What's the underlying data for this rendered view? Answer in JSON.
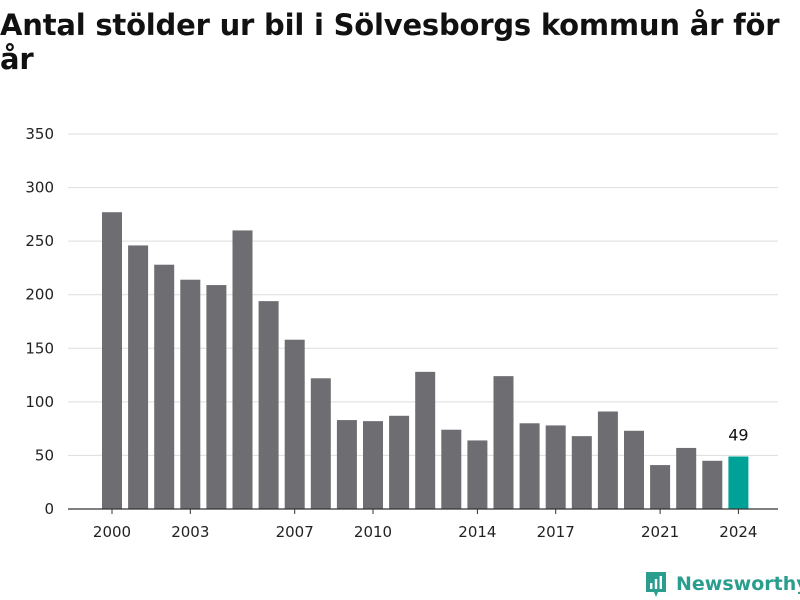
{
  "title": "Antal stölder ur bil i Sölvesborgs kommun år för år",
  "brand": {
    "name": "Newsworthy",
    "logo_icon": "newsworthy-logo-icon"
  },
  "colors": {
    "bar": "#6e6d72",
    "highlight": "#00a196",
    "grid": "#dddddd",
    "axis": "#333333",
    "brand": "#2a9d8f"
  },
  "chart_data": {
    "type": "bar",
    "title": "Antal stölder ur bil i Sölvesborgs kommun år för år",
    "xlabel": "",
    "ylabel": "",
    "categories": [
      "2000",
      "2001",
      "2002",
      "2003",
      "2004",
      "2005",
      "2006",
      "2007",
      "2008",
      "2009",
      "2010",
      "2011",
      "2012",
      "2013",
      "2014",
      "2015",
      "2016",
      "2017",
      "2018",
      "2019",
      "2020",
      "2021",
      "2022",
      "2023",
      "2024"
    ],
    "values": [
      277,
      246,
      228,
      214,
      209,
      260,
      194,
      158,
      122,
      83,
      82,
      87,
      128,
      74,
      64,
      124,
      80,
      78,
      68,
      91,
      73,
      41,
      57,
      45,
      49
    ],
    "x_tick_labels": [
      "2000",
      "2003",
      "2007",
      "2010",
      "2014",
      "2017",
      "2021",
      "2024"
    ],
    "y_ticks": [
      0,
      50,
      100,
      150,
      200,
      250,
      300,
      350
    ],
    "ylim": [
      0,
      350
    ],
    "grid": true,
    "highlight": {
      "category": "2024",
      "label": "49"
    }
  }
}
